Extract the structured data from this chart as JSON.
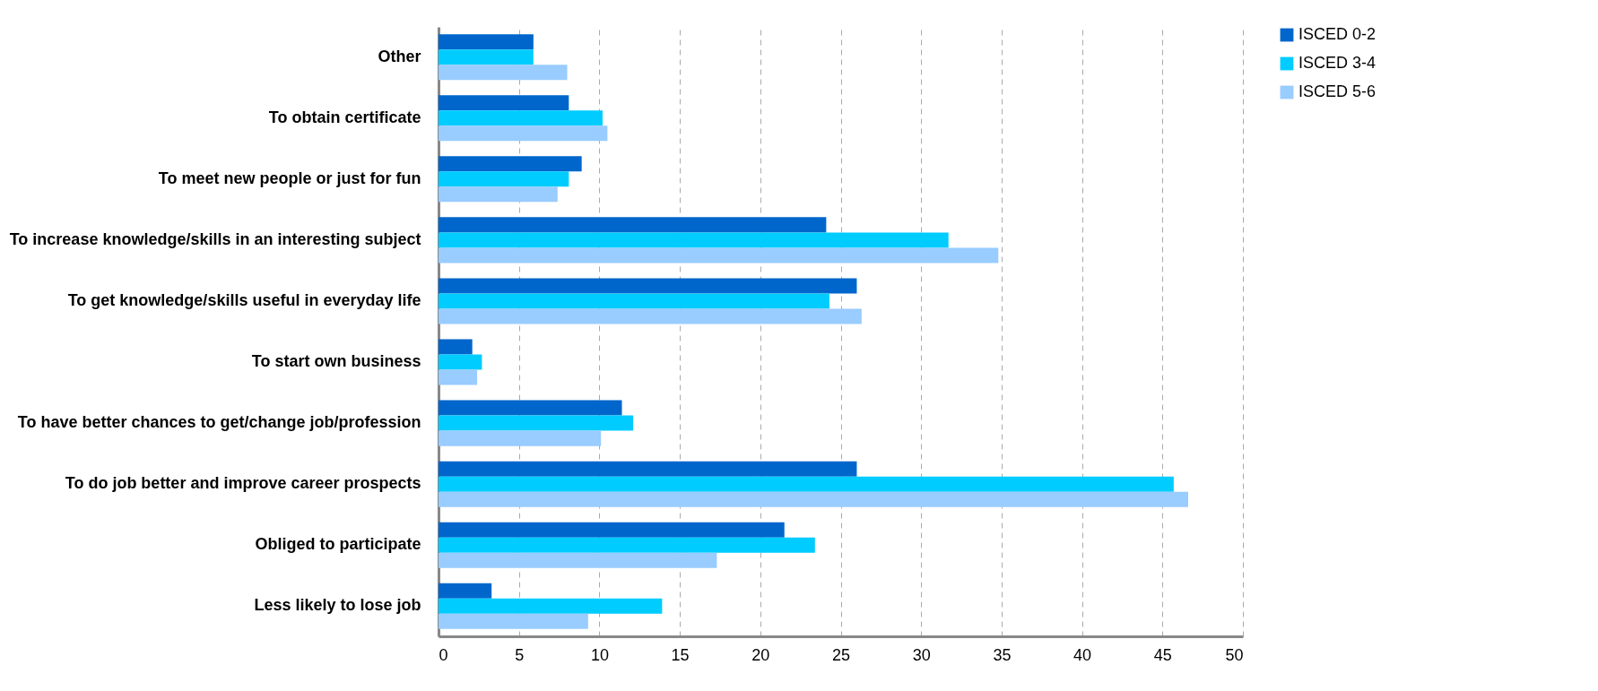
{
  "chart_data": {
    "type": "bar",
    "orientation": "horizontal",
    "categories": [
      "Other",
      "To obtain certificate",
      "To meet new people or just for fun",
      "To increase knowledge/skills in an interesting subject",
      "To get knowledge/skills useful in everyday life",
      "To start own business",
      "To have better chances to get/change job/profession",
      "To do job better and improve career prospects",
      "Obliged to participate",
      "Less likely to lose job"
    ],
    "series": [
      {
        "name": "ISCED 0-2",
        "color": "#0066cc",
        "values": [
          5.9,
          8.1,
          8.9,
          24.1,
          26.0,
          2.1,
          11.4,
          26.0,
          21.5,
          3.3
        ]
      },
      {
        "name": "ISCED 3-4",
        "color": "#00ccff",
        "values": [
          5.9,
          10.2,
          8.1,
          31.7,
          24.3,
          2.7,
          12.1,
          45.7,
          23.4,
          13.9
        ]
      },
      {
        "name": "ISCED 5-6",
        "color": "#99ccff",
        "values": [
          8.0,
          10.5,
          7.4,
          34.8,
          26.3,
          2.4,
          10.1,
          46.6,
          17.3,
          9.3
        ]
      }
    ],
    "xlim": [
      0,
      50
    ],
    "xticks": [
      0,
      5,
      10,
      15,
      20,
      25,
      30,
      35,
      40,
      45,
      50
    ],
    "grid": "x",
    "legend": "top right"
  }
}
